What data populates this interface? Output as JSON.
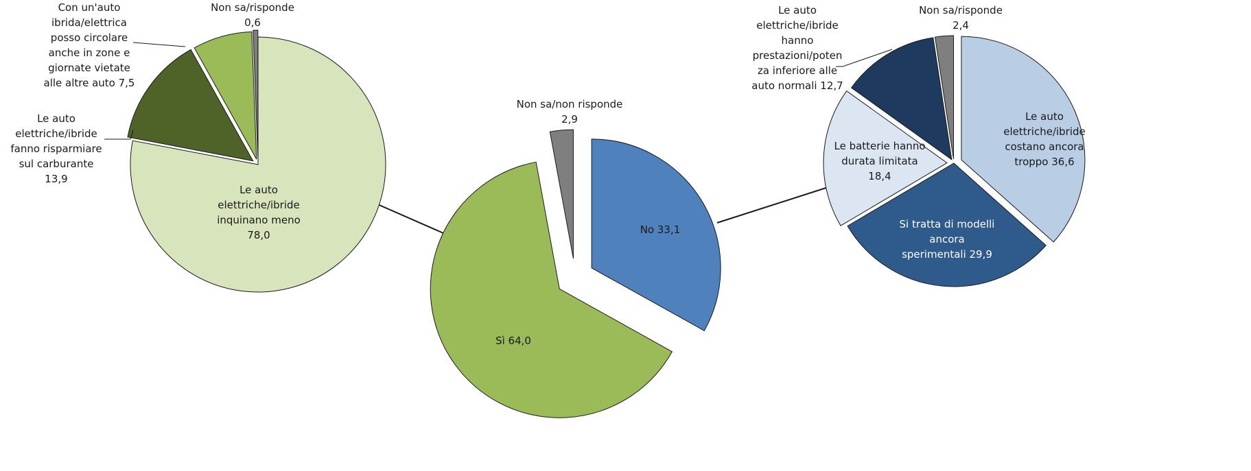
{
  "chart_data": [
    {
      "id": "left",
      "type": "pie",
      "slices": [
        {
          "key": "inquinano",
          "label_lines": [
            "Le auto",
            "elettriche/ibride",
            "inquinano meno",
            "78,0"
          ],
          "value": 78.0,
          "color": "#d8e4bc"
        },
        {
          "key": "risparmiare",
          "label_lines": [
            "Le auto",
            "elettriche/ibride",
            "fanno risparmiare",
            "sul carburante",
            "13,9"
          ],
          "value": 13.9,
          "color": "#4f6228"
        },
        {
          "key": "circolare",
          "label_lines": [
            "Con un'auto",
            "ibrida/elettrica",
            "posso circolare",
            "anche in zone e",
            "giornate vietate",
            "alle altre auto 7,5"
          ],
          "value": 7.5,
          "color": "#9bbb59"
        },
        {
          "key": "nonsa",
          "label_lines": [
            "Non sa/risponde",
            "0,6"
          ],
          "value": 0.6,
          "color": "#7f7f7f"
        }
      ]
    },
    {
      "id": "center",
      "type": "pie",
      "slices": [
        {
          "key": "no",
          "label_lines": [
            "No 33,1"
          ],
          "value": 33.1,
          "color": "#4f81bd"
        },
        {
          "key": "si",
          "label_lines": [
            "Sì 64,0"
          ],
          "value": 64.0,
          "color": "#9bbb59"
        },
        {
          "key": "nonsa",
          "label_lines": [
            "Non sa/non risponde",
            "2,9"
          ],
          "value": 2.9,
          "color": "#7f7f7f"
        }
      ]
    },
    {
      "id": "right",
      "type": "pie",
      "slices": [
        {
          "key": "costano",
          "label_lines": [
            "Le auto",
            "elettriche/ibride",
            "costano ancora",
            "troppo 36,6"
          ],
          "value": 36.6,
          "color": "#b9cde5"
        },
        {
          "key": "sperimentali",
          "label_lines": [
            "Si tratta di modelli",
            "ancora",
            "sperimentali 29,9"
          ],
          "value": 29.9,
          "color": "#2f5a8c"
        },
        {
          "key": "batterie",
          "label_lines": [
            "Le batterie hanno",
            "durata limitata",
            "18,4"
          ],
          "value": 18.4,
          "color": "#dce6f2"
        },
        {
          "key": "prestazioni",
          "label_lines": [
            "Le auto",
            "elettriche/ibride",
            "hanno",
            "prestazioni/poten",
            "za inferiore alle",
            "auto normali 12,7"
          ],
          "value": 12.7,
          "color": "#1f3a5f"
        },
        {
          "key": "nonsa",
          "label_lines": [
            "Non sa/risponde",
            "2,4"
          ],
          "value": 2.4,
          "color": "#7f7f7f"
        }
      ]
    }
  ]
}
